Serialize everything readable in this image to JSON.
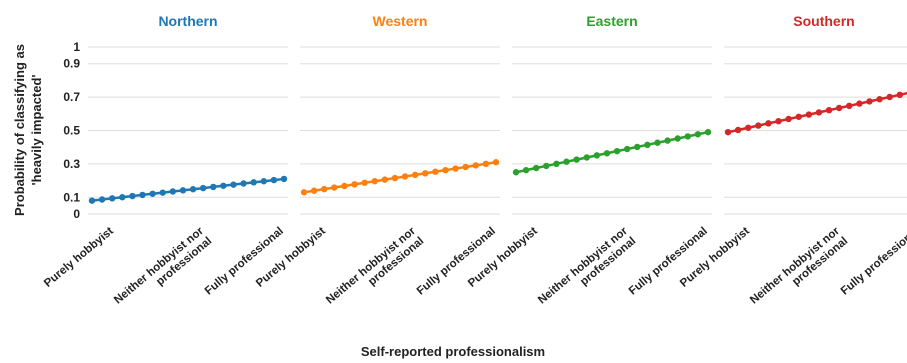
{
  "chart_data": {
    "type": "line",
    "xlabel": "Self-reported professionalism",
    "ylabel_lines": [
      "Probability of classifying as",
      "'heavily impacted'"
    ],
    "ylim": [
      0,
      1
    ],
    "yticks": [
      "0",
      "0.1",
      "0.3",
      "0.5",
      "0.7",
      "0.9",
      "1"
    ],
    "ytick_values": [
      0,
      0.1,
      0.3,
      0.5,
      0.7,
      0.9,
      1
    ],
    "grid": true,
    "categories": [
      [
        "Purely hobbyist"
      ],
      [
        "Neither hobbyist nor",
        "professional"
      ],
      [
        "Fully professional"
      ]
    ],
    "x_points_per_series": 20,
    "series": [
      {
        "name": "Northern",
        "color": "#1f77b4",
        "start": 0.08,
        "end": 0.21
      },
      {
        "name": "Western",
        "color": "#ff7f0e",
        "start": 0.13,
        "end": 0.31
      },
      {
        "name": "Eastern",
        "color": "#2ca02c",
        "start": 0.25,
        "end": 0.49
      },
      {
        "name": "Southern",
        "color": "#d62728",
        "start": 0.49,
        "end": 0.74
      }
    ]
  }
}
